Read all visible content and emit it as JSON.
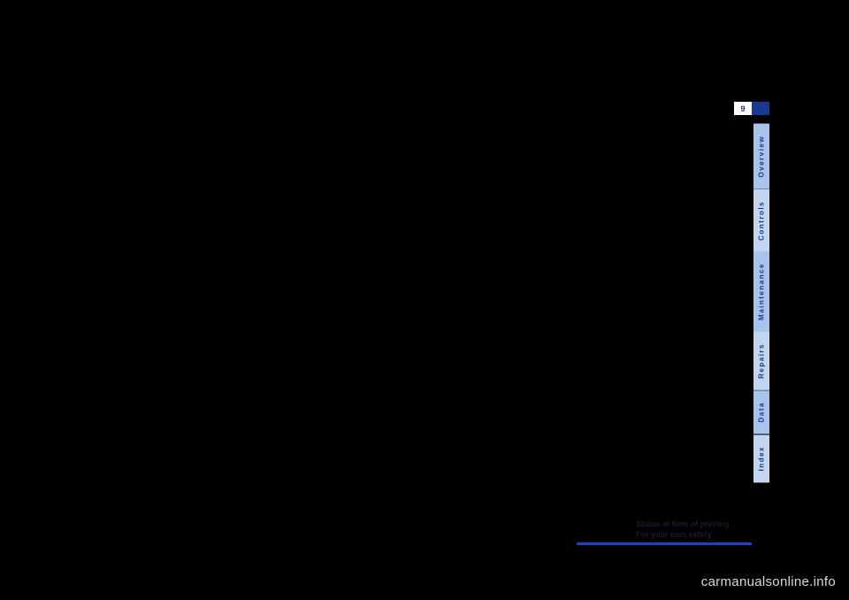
{
  "page": {
    "number": "9"
  },
  "tabs": {
    "overview": "Overview",
    "controls": "Controls",
    "maintenance": "Maintenance",
    "repairs": "Repairs",
    "data": "Data",
    "index": "Index"
  },
  "bottomText": {
    "line1": "Status at time of printing",
    "line2": "For your own safety"
  },
  "colors": {
    "background": "#000000",
    "tabLight": "#a8c4e8",
    "tabLighter": "#c4d6ee",
    "tabText": "#1a3a8e",
    "pageNumBg": "#ffffff",
    "pageNumText": "#1a3a6e",
    "pageNumBlue": "#1a3a8e",
    "blueBar": "#2040c0",
    "bodyText": "#1a1a2e",
    "watermark": "#d8d8d8"
  },
  "watermark": "carmanualsonline.info"
}
